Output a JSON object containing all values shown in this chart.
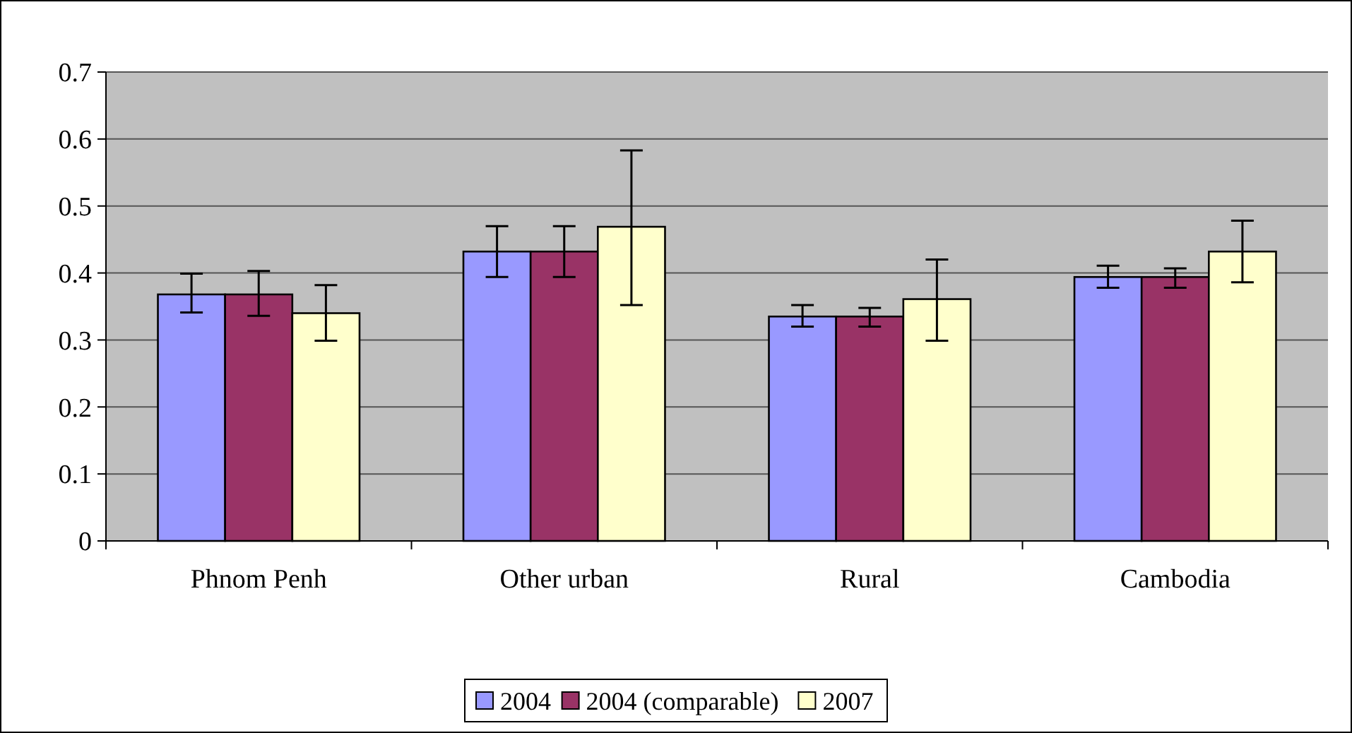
{
  "chart_data": {
    "type": "bar",
    "categories": [
      "Phnom Penh",
      "Other urban",
      "Rural",
      "Cambodia"
    ],
    "series": [
      {
        "name": "2004",
        "color": "#9999ff",
        "values": [
          0.368,
          0.432,
          0.335,
          0.394
        ],
        "errors": [
          [
            0.341,
            0.399
          ],
          [
            0.394,
            0.47
          ],
          [
            0.32,
            0.352
          ],
          [
            0.378,
            0.411
          ]
        ]
      },
      {
        "name": "2004 (comparable)",
        "color": "#993366",
        "values": [
          0.368,
          0.432,
          0.335,
          0.394
        ],
        "errors": [
          [
            0.336,
            0.403
          ],
          [
            0.394,
            0.47
          ],
          [
            0.32,
            0.348
          ],
          [
            0.378,
            0.407
          ]
        ]
      },
      {
        "name": "2007",
        "color": "#ffffcc",
        "values": [
          0.34,
          0.469,
          0.361,
          0.432
        ],
        "errors": [
          [
            0.299,
            0.382
          ],
          [
            0.352,
            0.583
          ],
          [
            0.299,
            0.42
          ],
          [
            0.386,
            0.478
          ]
        ]
      }
    ],
    "ylim": [
      0,
      0.7
    ],
    "yticks": [
      0,
      0.1,
      0.2,
      0.3,
      0.4,
      0.5,
      0.6,
      0.7
    ],
    "grid": "y",
    "legend": "bottom"
  }
}
